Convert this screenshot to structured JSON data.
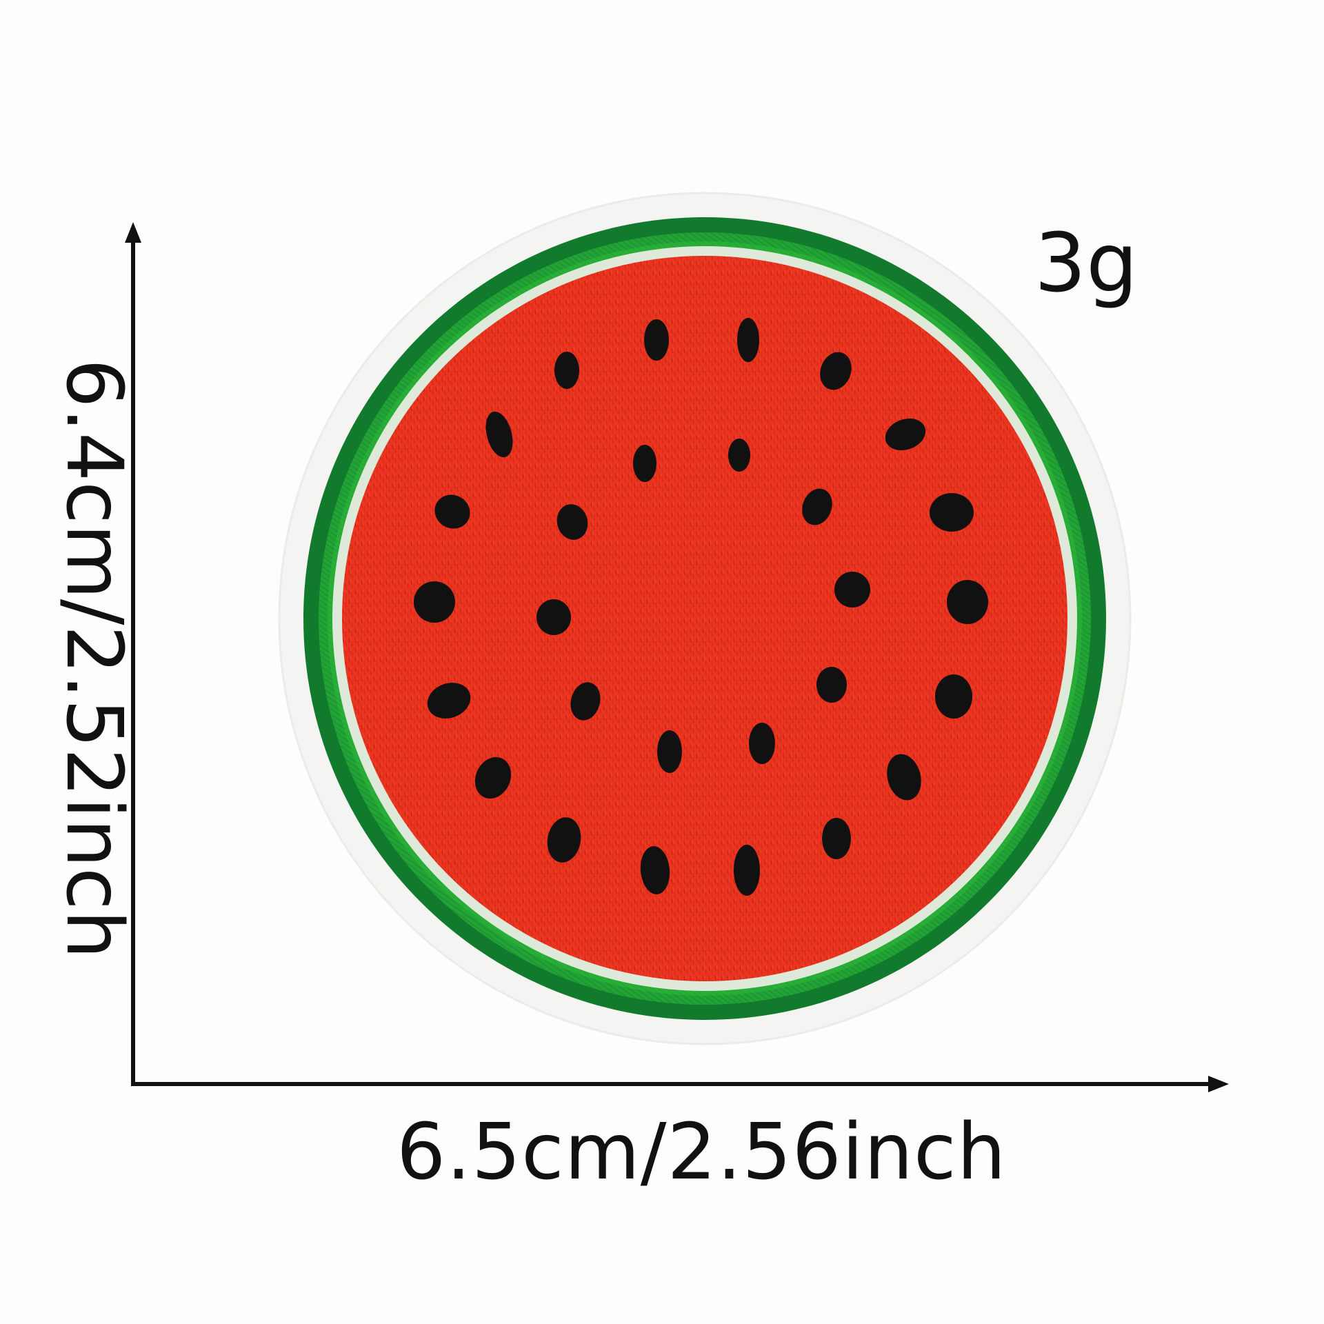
{
  "labels": {
    "weight": "3g",
    "width": "6.5cm/2.56inch",
    "height": "6.4cm/2.52inch"
  },
  "colors": {
    "background": "#fdfdfd",
    "felt": "#f4f4f2",
    "rind_dark": "#127a2c",
    "rind_light": "#2fb83a",
    "flesh": "#e9341f",
    "seeds": "#111111",
    "arrows": "#111111"
  },
  "object": "watermelon-slice-embroidered-patch"
}
